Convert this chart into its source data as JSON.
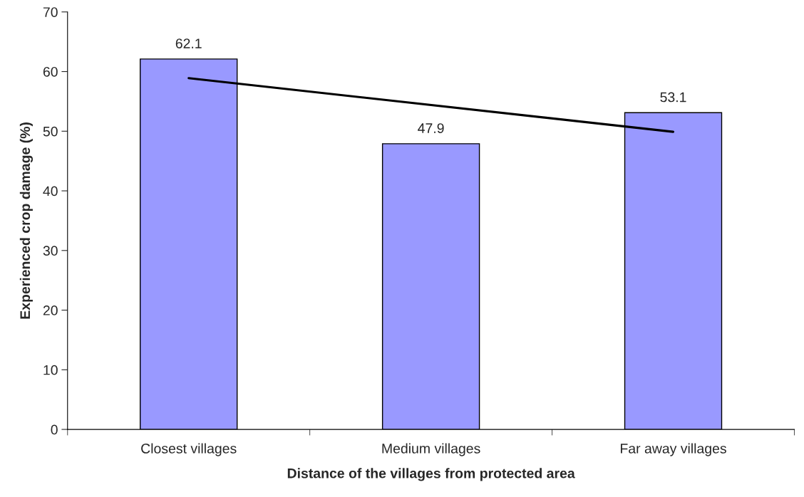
{
  "chart_data": {
    "type": "bar",
    "xlabel": "Distance of the villages from protected area",
    "ylabel": "Experienced crop damage (%)",
    "categories": [
      "Closest villages",
      "Medium villages",
      "Far away villages"
    ],
    "series": [
      {
        "color": "#9999ff",
        "values": [
          62.1,
          47.9,
          53.1
        ],
        "value_labels": [
          "62.1",
          "47.9",
          "53.1"
        ]
      },
      {
        "type": "line",
        "color": "#000000",
        "x": [
          "Closest villages",
          "Far away villages"
        ],
        "values": [
          58.9,
          49.9
        ]
      }
    ],
    "ylim": [
      0,
      70
    ],
    "yticks": [
      0,
      10,
      20,
      30,
      40,
      50,
      60,
      70
    ],
    "grid": false,
    "legend": false,
    "marker": "none",
    "line_style": "solid"
  }
}
